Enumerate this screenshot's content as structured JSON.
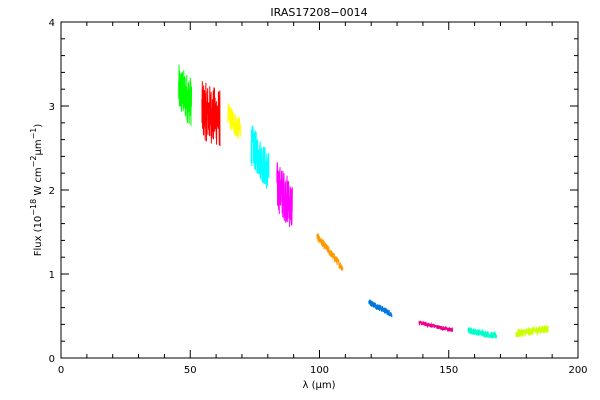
{
  "chart_data": {
    "type": "line",
    "title": "IRAS17208−0014",
    "xlabel": {
      "pre": "λ (",
      "mu": "μ",
      "post": "m)"
    },
    "ylabel": {
      "part1": "Flux (10",
      "exp1": "−18",
      "part2": " W cm",
      "exp2": "−2",
      "mu": "μ",
      "part3": "m",
      "exp3": "−1",
      "part4": ")"
    },
    "xlim": [
      0,
      200
    ],
    "ylim": [
      0,
      4
    ],
    "x_ticks": [
      0,
      50,
      100,
      150,
      200
    ],
    "x_tick_labels": [
      "0",
      "50",
      "100",
      "150",
      "200"
    ],
    "y_ticks": [
      0,
      1,
      2,
      3,
      4
    ],
    "y_tick_labels": [
      "0",
      "1",
      "2",
      "3",
      "4"
    ],
    "grid": false,
    "series": [
      {
        "color": "#00ff00",
        "x_range": [
          45.5,
          50.5
        ],
        "y_start": 3.2,
        "y_end": 3.05,
        "noise": 0.3
      },
      {
        "color": "#ff0000",
        "x_range": [
          54.5,
          61.5
        ],
        "y_start": 2.95,
        "y_end": 2.85,
        "noise": 0.35
      },
      {
        "color": "#ffff00",
        "x_range": [
          64.5,
          69.5
        ],
        "y_start": 2.9,
        "y_end": 2.7,
        "noise": 0.15
      },
      {
        "color": "#00ffff",
        "x_range": [
          73.5,
          80.5
        ],
        "y_start": 2.55,
        "y_end": 2.2,
        "noise": 0.25
      },
      {
        "color": "#ff00ff",
        "x_range": [
          83.5,
          89.5
        ],
        "y_start": 2.05,
        "y_end": 1.8,
        "noise": 0.3
      },
      {
        "color": "#ff9900",
        "x_range": [
          99.0,
          109.0
        ],
        "y_start": 1.45,
        "y_end": 1.07,
        "noise": 0.05
      },
      {
        "color": "#0077dd",
        "x_range": [
          119.0,
          128.0
        ],
        "y_start": 0.67,
        "y_end": 0.52,
        "noise": 0.04
      },
      {
        "color": "#ee0088",
        "x_range": [
          138.5,
          151.5
        ],
        "y_start": 0.42,
        "y_end": 0.33,
        "noise": 0.025
      },
      {
        "color": "#00ffcc",
        "x_range": [
          157.5,
          168.5
        ],
        "y_start": 0.33,
        "y_end": 0.26,
        "noise": 0.04
      },
      {
        "color": "#ccff00",
        "x_range": [
          176.0,
          188.5
        ],
        "y_start": 0.29,
        "y_end": 0.35,
        "noise": 0.05
      }
    ]
  }
}
